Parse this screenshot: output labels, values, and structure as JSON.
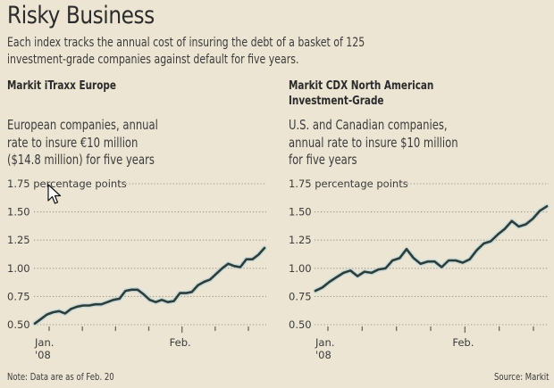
{
  "header": {
    "title": "Risky Business",
    "subtitle_line1": "Each index tracks the annual cost of insuring the debt of a basket of 125",
    "subtitle_line2": "investment-grade companies against default for five years."
  },
  "panels": [
    {
      "title_line1": "Markit iTraxx Europe",
      "title_line2": "",
      "desc_line1": "European companies, annual",
      "desc_line2": "rate to insure €10 million",
      "desc_line3": "($14.8 million) for five years"
    },
    {
      "title_line1": "Markit CDX North American",
      "title_line2": "Investment-Grade",
      "desc_line1": "U.S. and Canadian companies,",
      "desc_line2": "annual rate to insure $10 million",
      "desc_line3": "for five years"
    }
  ],
  "footer": {
    "note": "Note: Data are as of Feb. 20",
    "source": "Source: Markit"
  },
  "colors": {
    "background": "#ece5d3",
    "line": "#2f3d38",
    "line_halo": "#b9d6dc",
    "grid": "#9a9688",
    "text": "#3b3b3b"
  },
  "chart_data": [
    {
      "type": "line",
      "title": "Markit iTraxx Europe",
      "ylabel": "percentage points",
      "ylim": [
        0.5,
        1.75
      ],
      "yticks": [
        0.5,
        0.75,
        1.0,
        1.25,
        1.5,
        1.75
      ],
      "ytick_labels": [
        "0.50",
        "0.75",
        "1.00",
        "1.25",
        "1.50",
        "1.75 percentage points"
      ],
      "xtick_labels": [
        {
          "label": "Jan.",
          "sublabel": "'08",
          "tick_index": 0
        },
        {
          "label": "Feb.",
          "sublabel": "",
          "tick_index": 4
        }
      ],
      "x_ticks_count": 7,
      "grid": true,
      "series": [
        {
          "name": "iTraxx Europe",
          "values": [
            0.51,
            0.55,
            0.59,
            0.61,
            0.62,
            0.6,
            0.64,
            0.66,
            0.67,
            0.67,
            0.68,
            0.68,
            0.7,
            0.72,
            0.73,
            0.8,
            0.81,
            0.81,
            0.77,
            0.72,
            0.7,
            0.72,
            0.7,
            0.71,
            0.78,
            0.78,
            0.79,
            0.85,
            0.88,
            0.9,
            0.95,
            1.0,
            1.04,
            1.02,
            1.01,
            1.08,
            1.08,
            1.12,
            1.18
          ]
        }
      ]
    },
    {
      "type": "line",
      "title": "Markit CDX North American Investment-Grade",
      "ylabel": "percentage points",
      "ylim": [
        0.5,
        1.75
      ],
      "yticks": [
        0.5,
        0.75,
        1.0,
        1.25,
        1.5,
        1.75
      ],
      "ytick_labels": [
        "0.50",
        "0.75",
        "1.00",
        "1.25",
        "1.50",
        "1.75 percentage points"
      ],
      "xtick_labels": [
        {
          "label": "Jan.",
          "sublabel": "'08",
          "tick_index": 0
        },
        {
          "label": "Feb.",
          "sublabel": "",
          "tick_index": 4
        }
      ],
      "x_ticks_count": 7,
      "grid": true,
      "series": [
        {
          "name": "CDX North American Investment-Grade",
          "values": [
            0.8,
            0.83,
            0.88,
            0.92,
            0.96,
            0.98,
            0.93,
            0.97,
            0.96,
            0.99,
            1.0,
            1.07,
            1.09,
            1.17,
            1.09,
            1.04,
            1.06,
            1.06,
            1.01,
            1.07,
            1.07,
            1.05,
            1.08,
            1.16,
            1.22,
            1.24,
            1.3,
            1.35,
            1.42,
            1.37,
            1.39,
            1.44,
            1.51,
            1.55
          ]
        }
      ]
    }
  ]
}
